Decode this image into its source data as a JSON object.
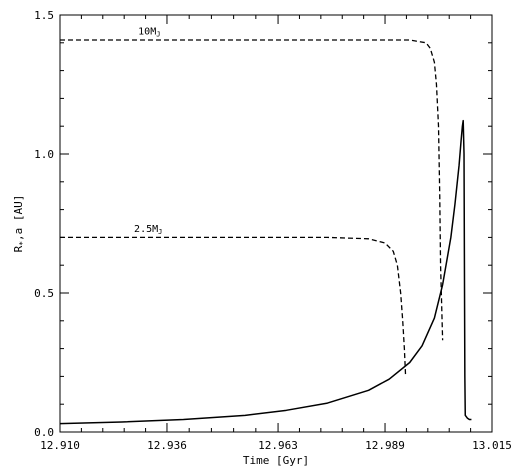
{
  "chart_data": {
    "type": "line",
    "xlabel": "Time [Gyr]",
    "ylabel_main": "R",
    "ylabel_sub": "*",
    "ylabel_rest": ",a [AU]",
    "xlim": [
      12.91,
      13.015
    ],
    "ylim": [
      0.0,
      1.5
    ],
    "x_ticks": [
      {
        "value": 12.91,
        "label": "12.910"
      },
      {
        "value": 12.936,
        "label": "12.936"
      },
      {
        "value": 12.963,
        "label": "12.963"
      },
      {
        "value": 12.989,
        "label": "12.989"
      },
      {
        "value": 13.015,
        "label": "13.015"
      }
    ],
    "y_ticks": [
      {
        "value": 0.0,
        "label": "0.0"
      },
      {
        "value": 0.5,
        "label": "0.5"
      },
      {
        "value": 1.0,
        "label": "1.0"
      },
      {
        "value": 1.5,
        "label": "1.5"
      }
    ],
    "series": [
      {
        "style": "solid",
        "x": [
          12.91,
          12.925,
          12.94,
          12.955,
          12.965,
          12.975,
          12.985,
          12.99,
          12.995,
          12.998,
          13.001,
          13.003,
          13.005,
          13.006,
          13.007,
          13.0075,
          13.0078,
          13.008,
          13.0082,
          13.0083,
          13.0084,
          13.0085,
          13.009,
          13.0095,
          13.01
        ],
        "y": [
          0.03,
          0.036,
          0.045,
          0.06,
          0.078,
          0.104,
          0.15,
          0.19,
          0.25,
          0.31,
          0.41,
          0.53,
          0.7,
          0.82,
          0.96,
          1.05,
          1.1,
          1.12,
          1.0,
          0.6,
          0.2,
          0.06,
          0.05,
          0.045,
          0.045
        ]
      },
      {
        "label": "10M",
        "label_sub": "J",
        "style": "dashed",
        "x": [
          12.91,
          12.94,
          12.97,
          12.985,
          12.995,
          12.999,
          13.0,
          13.001,
          13.0015,
          13.002,
          13.0023,
          13.0025,
          13.003
        ],
        "y": [
          1.41,
          1.41,
          1.41,
          1.41,
          1.41,
          1.4,
          1.38,
          1.33,
          1.25,
          1.1,
          0.85,
          0.6,
          0.33
        ]
      },
      {
        "label": "2.5M",
        "label_sub": "J",
        "style": "dashed",
        "x": [
          12.91,
          12.94,
          12.96,
          12.975,
          12.985,
          12.989,
          12.991,
          12.992,
          12.9928,
          12.9933,
          12.9937,
          12.994
        ],
        "y": [
          0.7,
          0.7,
          0.7,
          0.7,
          0.695,
          0.68,
          0.65,
          0.6,
          0.5,
          0.4,
          0.3,
          0.2
        ]
      }
    ],
    "annotations": [
      {
        "text": "10M",
        "sub": "J",
        "x": 12.929,
        "y": 1.43
      },
      {
        "text": "2.5M",
        "sub": "J",
        "x": 12.928,
        "y": 0.72
      }
    ],
    "colors": {
      "line": "#000000",
      "background": "#ffffff"
    }
  }
}
